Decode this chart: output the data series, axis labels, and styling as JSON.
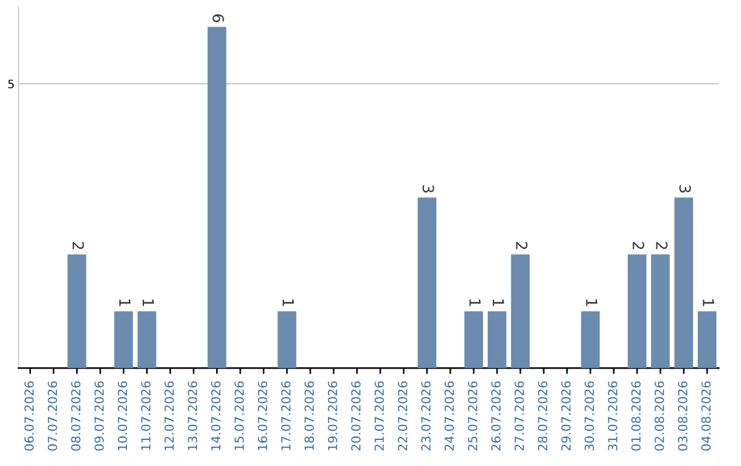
{
  "chart_data": {
    "type": "bar",
    "categories": [
      "06.07.2026",
      "07.07.2026",
      "08.07.2026",
      "09.07.2026",
      "10.07.2026",
      "11.07.2026",
      "12.07.2026",
      "13.07.2026",
      "14.07.2026",
      "15.07.2026",
      "16.07.2026",
      "17.07.2026",
      "18.07.2026",
      "19.07.2026",
      "20.07.2026",
      "21.07.2026",
      "22.07.2026",
      "23.07.2026",
      "24.07.2026",
      "25.07.2026",
      "26.07.2026",
      "27.07.2026",
      "28.07.2026",
      "29.07.2026",
      "30.07.2026",
      "31.07.2026",
      "01.08.2026",
      "02.08.2026",
      "03.08.2026",
      "04.08.2026"
    ],
    "values": [
      0,
      0,
      2,
      0,
      1,
      1,
      0,
      0,
      6,
      0,
      0,
      1,
      0,
      0,
      0,
      0,
      0,
      3,
      0,
      1,
      1,
      2,
      0,
      0,
      1,
      0,
      2,
      2,
      3,
      1
    ],
    "value_labels": [
      null,
      null,
      "2",
      null,
      "1",
      "1",
      null,
      null,
      "6",
      null,
      null,
      "1",
      null,
      null,
      null,
      null,
      null,
      "3",
      null,
      "1",
      "1",
      "2",
      null,
      null,
      "1",
      null,
      "2",
      "2",
      "3",
      "1"
    ],
    "color": "#6b8cae",
    "ylim": [
      0,
      6.35
    ],
    "yticks": [
      5
    ],
    "grid": "y"
  }
}
